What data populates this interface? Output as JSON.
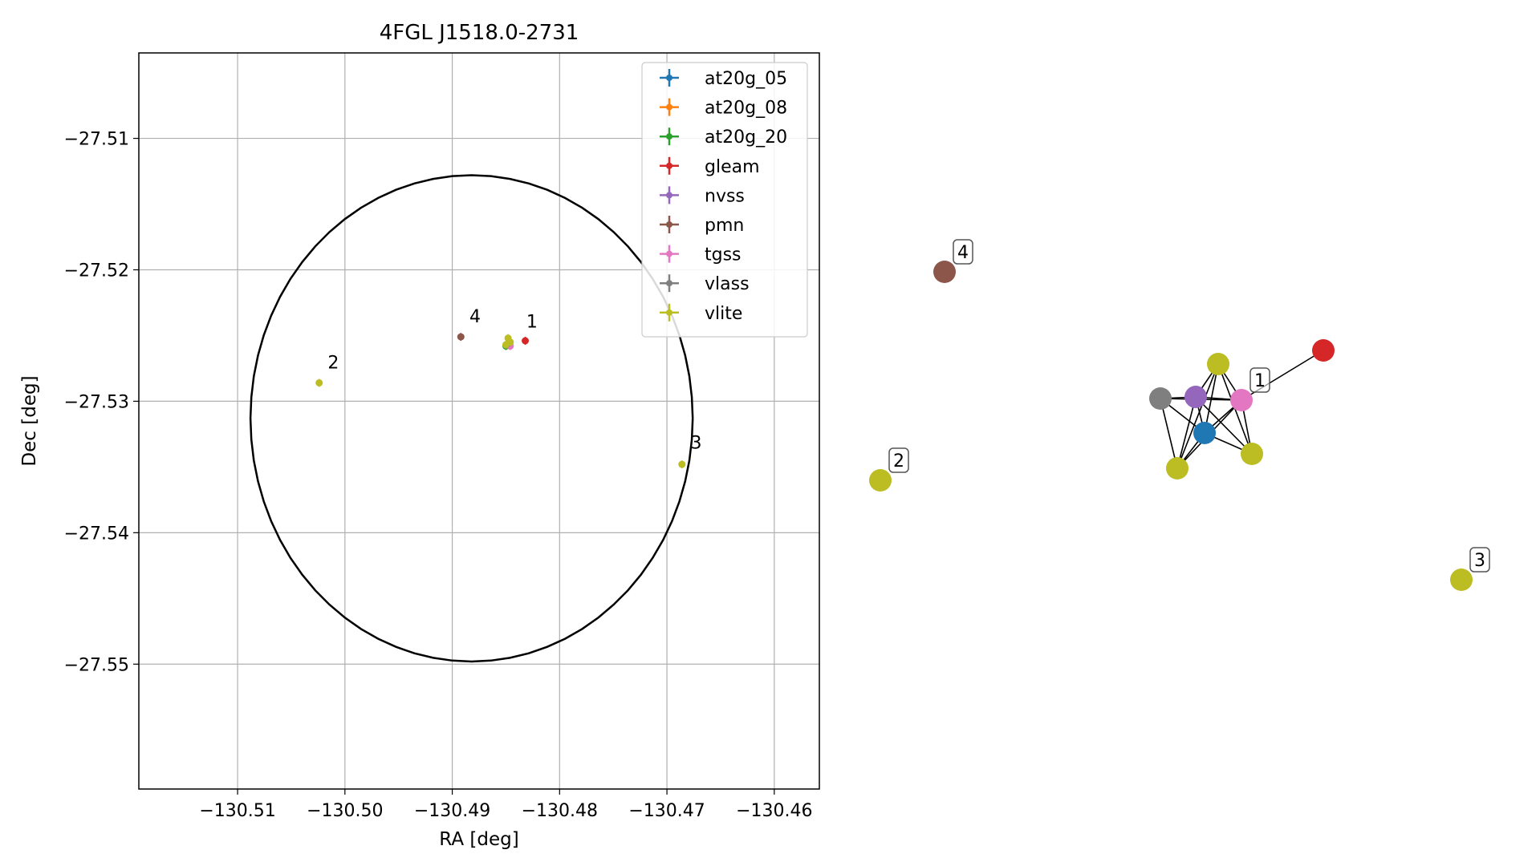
{
  "chart_data": [
    {
      "type": "scatter",
      "title": "4FGL J1518.0-2731",
      "xlabel": "RA [deg]",
      "ylabel": "Dec [deg]",
      "xlim": [
        -130.5192,
        -130.4558
      ],
      "ylim": [
        -27.5595,
        -27.5035
      ],
      "grid": true,
      "legend_position": "top-right",
      "xticks": [
        -130.51,
        -130.5,
        -130.49,
        -130.48,
        -130.47,
        -130.46
      ],
      "xtick_labels": [
        "−130.51",
        "−130.50",
        "−130.49",
        "−130.48",
        "−130.47",
        "−130.46"
      ],
      "yticks": [
        -27.51,
        -27.52,
        -27.53,
        -27.54,
        -27.55
      ],
      "ytick_labels": [
        "−27.51",
        "−27.52",
        "−27.53",
        "−27.54",
        "−27.55"
      ],
      "ellipse": {
        "center": [
          -130.4882,
          -27.5313
        ],
        "ra_radius": 0.0206,
        "dec_radius": 0.0185
      },
      "series": [
        {
          "name": "at20g_05",
          "color": "#1f77b4",
          "points": [
            [
              -130.4848,
              -27.5257
            ]
          ]
        },
        {
          "name": "at20g_08",
          "color": "#ff7f0e",
          "points": []
        },
        {
          "name": "at20g_20",
          "color": "#2ca02c",
          "points": [
            [
              -130.485,
              -27.5258
            ]
          ]
        },
        {
          "name": "gleam",
          "color": "#d62728",
          "points": [
            [
              -130.4832,
              -27.5254
            ]
          ]
        },
        {
          "name": "nvss",
          "color": "#9467bd",
          "points": [
            [
              -130.4847,
              -27.5256
            ]
          ]
        },
        {
          "name": "pmn",
          "color": "#8c564b",
          "points": [
            [
              -130.4892,
              -27.5251
            ]
          ]
        },
        {
          "name": "tgss",
          "color": "#e377c2",
          "points": [
            [
              -130.4846,
              -27.5258
            ]
          ]
        },
        {
          "name": "vlass",
          "color": "#7f7f7f",
          "points": [
            [
              -130.4848,
              -27.5256
            ]
          ]
        },
        {
          "name": "vlite",
          "color": "#bcbd22",
          "points": [
            [
              -130.4848,
              -27.5252
            ],
            [
              -130.4846,
              -27.5255
            ],
            [
              -130.485,
              -27.5257
            ],
            [
              -130.5024,
              -27.5286
            ],
            [
              -130.4686,
              -27.5348
            ]
          ]
        }
      ],
      "annotations": [
        {
          "text": "1",
          "x": -130.4831,
          "y": -27.5244
        },
        {
          "text": "2",
          "x": -130.5016,
          "y": -27.5275
        },
        {
          "text": "3",
          "x": -130.4678,
          "y": -27.5336
        },
        {
          "text": "4",
          "x": -130.4884,
          "y": -27.524
        }
      ]
    },
    {
      "type": "network",
      "nodes": [
        {
          "id": "pmn",
          "color": "#8c564b",
          "label": "4"
        },
        {
          "id": "vlite_2",
          "color": "#bcbd22",
          "label": "2"
        },
        {
          "id": "vlite_3",
          "color": "#bcbd22",
          "label": "3"
        },
        {
          "id": "gleam",
          "color": "#d62728",
          "label": ""
        },
        {
          "id": "vlite_a",
          "color": "#bcbd22",
          "label": ""
        },
        {
          "id": "vlass",
          "color": "#7f7f7f",
          "label": ""
        },
        {
          "id": "nvss",
          "color": "#9467bd",
          "label": ""
        },
        {
          "id": "tgss",
          "color": "#e377c2",
          "label": "1"
        },
        {
          "id": "at20g_05",
          "color": "#1f77b4",
          "label": ""
        },
        {
          "id": "vlite_b",
          "color": "#bcbd22",
          "label": ""
        },
        {
          "id": "vlite_c",
          "color": "#bcbd22",
          "label": ""
        }
      ],
      "edges": [
        [
          "tgss",
          "gleam"
        ],
        [
          "tgss",
          "vlite_a"
        ],
        [
          "tgss",
          "nvss"
        ],
        [
          "tgss",
          "vlass"
        ],
        [
          "tgss",
          "at20g_05"
        ],
        [
          "tgss",
          "vlite_b"
        ],
        [
          "tgss",
          "vlite_c"
        ],
        [
          "vlite_a",
          "nvss"
        ],
        [
          "vlite_a",
          "at20g_05"
        ],
        [
          "vlite_a",
          "vlite_b"
        ],
        [
          "vlite_a",
          "vlite_c"
        ],
        [
          "vlass",
          "nvss"
        ],
        [
          "vlass",
          "at20g_05"
        ],
        [
          "vlass",
          "vlite_b"
        ],
        [
          "nvss",
          "at20g_05"
        ],
        [
          "nvss",
          "vlite_b"
        ],
        [
          "nvss",
          "vlite_c"
        ],
        [
          "at20g_05",
          "vlite_b"
        ],
        [
          "at20g_05",
          "vlite_c"
        ]
      ]
    }
  ]
}
